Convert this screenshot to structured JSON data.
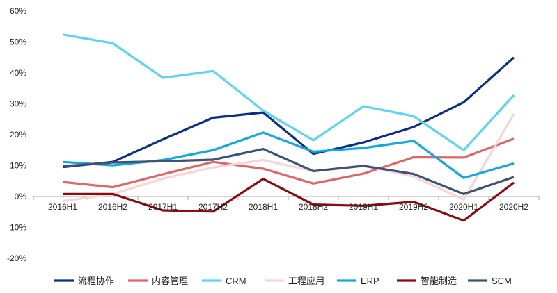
{
  "chart_data": {
    "type": "line",
    "categories": [
      "2016H1",
      "2016H2",
      "2017H1",
      "2017H2",
      "2018H1",
      "2018H2",
      "2019H1",
      "2019H2",
      "2020H1",
      "2020H2"
    ],
    "ylim": [
      -20,
      60
    ],
    "yticks": [
      -20,
      -10,
      0,
      10,
      20,
      30,
      40,
      50,
      60
    ],
    "ytick_labels": [
      "-20%",
      "-10%",
      "0%",
      "10%",
      "20%",
      "30%",
      "40%",
      "50%",
      "60%"
    ],
    "y_unit": "%",
    "grid": false,
    "legend_position": "bottom",
    "series": [
      {
        "name": "流程协作",
        "color": "#0b2f86",
        "values": [
          9.5,
          11.2,
          18.5,
          25.5,
          27.2,
          13.8,
          17.5,
          22.5,
          30.5,
          45.0
        ]
      },
      {
        "name": "内容管理",
        "color": "#e06666",
        "values": [
          4.7,
          3.0,
          7.2,
          11.2,
          9.0,
          4.2,
          7.4,
          12.7,
          12.6,
          18.7
        ]
      },
      {
        "name": "CRM",
        "color": "#5fd3f3",
        "values": [
          52.4,
          49.6,
          38.4,
          40.6,
          27.8,
          18.2,
          29.2,
          26.0,
          15.0,
          32.8
        ]
      },
      {
        "name": "工程应用",
        "color": "#f9d4d4",
        "values": [
          -1.5,
          0.8,
          5.8,
          9.4,
          11.8,
          8.2,
          10.0,
          6.5,
          -1.0,
          26.7
        ]
      },
      {
        "name": "ERP",
        "color": "#12a7dd",
        "values": [
          11.2,
          10.1,
          11.8,
          15.0,
          20.7,
          14.5,
          15.7,
          18.0,
          6.0,
          10.7
        ]
      },
      {
        "name": "智能制造",
        "color": "#8b0b12",
        "values": [
          0.8,
          0.8,
          -4.5,
          -4.9,
          5.7,
          -2.6,
          -3.0,
          -1.7,
          -7.8,
          4.5
        ]
      },
      {
        "name": "SCM",
        "color": "#3e5373",
        "values": [
          9.8,
          11.0,
          11.4,
          11.9,
          15.4,
          8.2,
          9.9,
          7.3,
          0.8,
          6.3
        ]
      }
    ]
  }
}
